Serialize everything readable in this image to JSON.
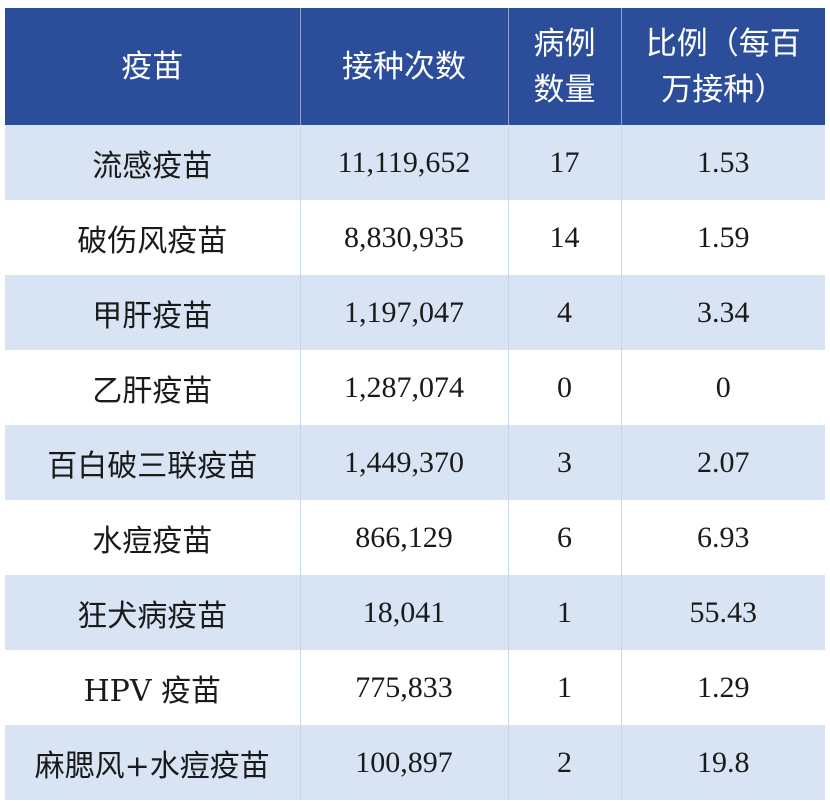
{
  "table": {
    "headers": [
      "疫苗",
      "接种次数",
      "病例数量",
      "比例（每百万接种）"
    ],
    "header_lines": {
      "col3": [
        "病例",
        "数量"
      ],
      "col4": [
        "比例（每百",
        "万接种）"
      ]
    },
    "rows": [
      {
        "vaccine": "流感疫苗",
        "doses": "11,119,652",
        "cases": "17",
        "rate": "1.53"
      },
      {
        "vaccine": "破伤风疫苗",
        "doses": "8,830,935",
        "cases": "14",
        "rate": "1.59"
      },
      {
        "vaccine": "甲肝疫苗",
        "doses": "1,197,047",
        "cases": "4",
        "rate": "3.34"
      },
      {
        "vaccine": "乙肝疫苗",
        "doses": "1,287,074",
        "cases": "0",
        "rate": "0"
      },
      {
        "vaccine": "百白破三联疫苗",
        "doses": "1,449,370",
        "cases": "3",
        "rate": "2.07"
      },
      {
        "vaccine": "水痘疫苗",
        "doses": "866,129",
        "cases": "6",
        "rate": "6.93"
      },
      {
        "vaccine": "狂犬病疫苗",
        "doses": "18,041",
        "cases": "1",
        "rate": "55.43"
      },
      {
        "vaccine": "HPV 疫苗",
        "doses": "775,833",
        "cases": "1",
        "rate": "1.29"
      },
      {
        "vaccine": "麻腮风+水痘疫苗",
        "doses": "100,897",
        "cases": "2",
        "rate": "19.8"
      }
    ]
  },
  "colors": {
    "header_bg": "#2c4d9a",
    "header_text": "#ffffff",
    "row_alt_bg": "#d8e4f4",
    "row_bg": "#ffffff"
  }
}
